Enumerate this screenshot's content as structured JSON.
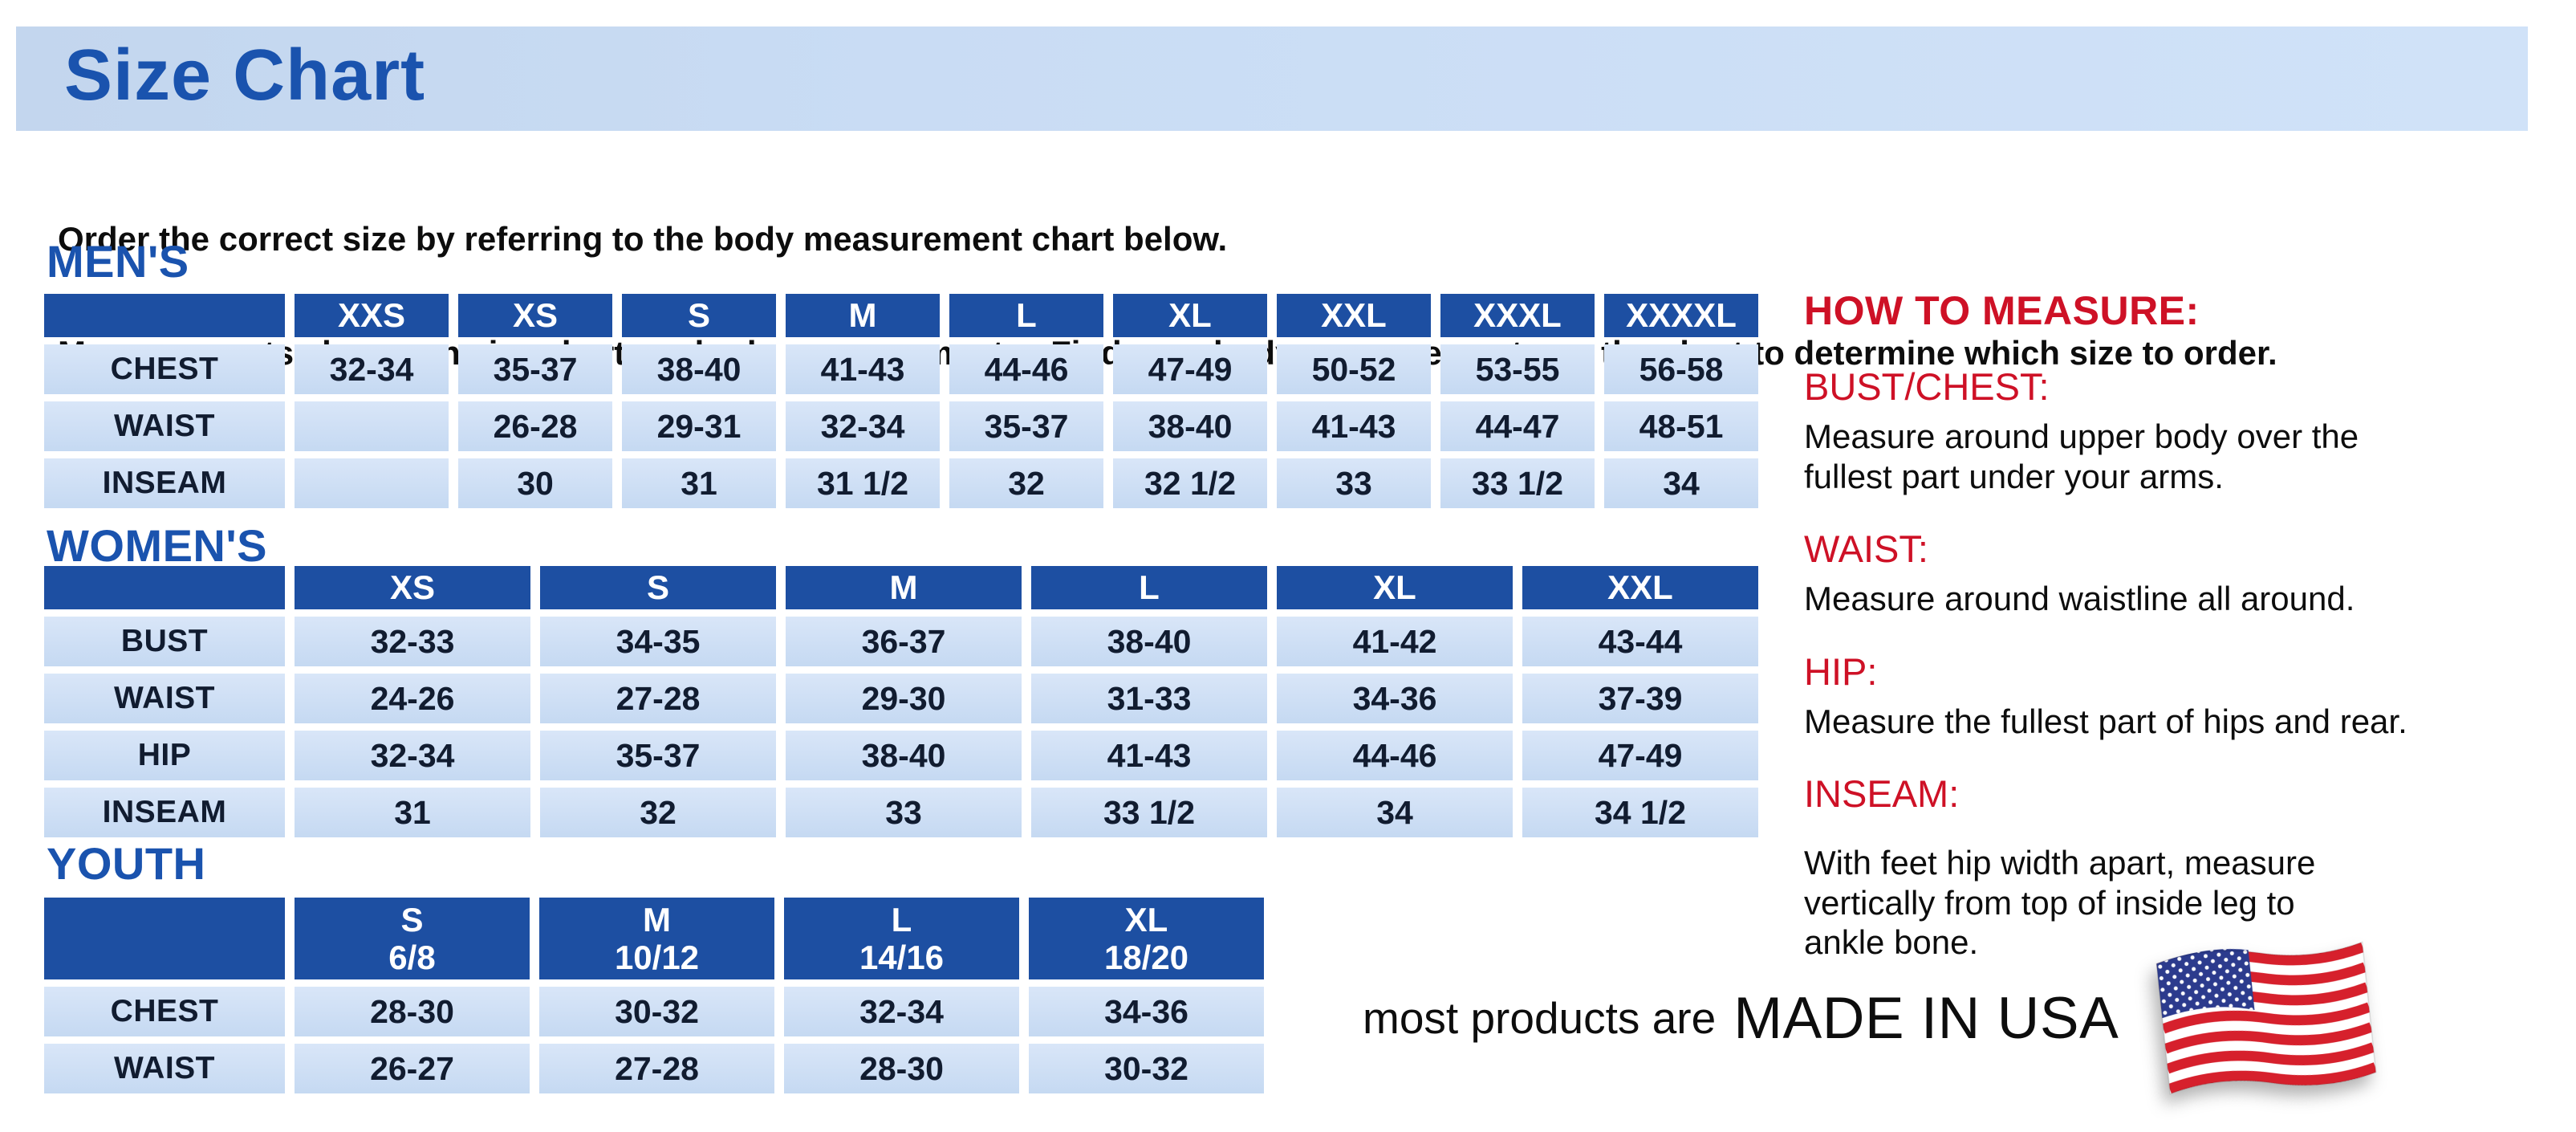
{
  "page": {
    "title": "Size Chart",
    "intro_line1": "Order the correct size by referring to the body measurement chart below.",
    "intro_line2": "Measurements shown on size chart are body measurements.  Find your body measurements on the chart to determine which size to order."
  },
  "tables": {
    "mens": {
      "heading": "MEN'S",
      "columns": [
        "XXS",
        "XS",
        "S",
        "M",
        "L",
        "XL",
        "XXL",
        "XXXL",
        "XXXXL"
      ],
      "rows": [
        {
          "label": "CHEST",
          "values": [
            "32-34",
            "35-37",
            "38-40",
            "41-43",
            "44-46",
            "47-49",
            "50-52",
            "53-55",
            "56-58"
          ]
        },
        {
          "label": "WAIST",
          "values": [
            "",
            "26-28",
            "29-31",
            "32-34",
            "35-37",
            "38-40",
            "41-43",
            "44-47",
            "48-51"
          ]
        },
        {
          "label": "INSEAM",
          "values": [
            "",
            "30",
            "31",
            "31 1/2",
            "32",
            "32 1/2",
            "33",
            "33 1/2",
            "34"
          ]
        }
      ]
    },
    "womens": {
      "heading": "WOMEN'S",
      "columns": [
        "XS",
        "S",
        "M",
        "L",
        "XL",
        "XXL"
      ],
      "rows": [
        {
          "label": "BUST",
          "values": [
            "32-33",
            "34-35",
            "36-37",
            "38-40",
            "41-42",
            "43-44"
          ]
        },
        {
          "label": "WAIST",
          "values": [
            "24-26",
            "27-28",
            "29-30",
            "31-33",
            "34-36",
            "37-39"
          ]
        },
        {
          "label": "HIP",
          "values": [
            "32-34",
            "35-37",
            "38-40",
            "41-43",
            "44-46",
            "47-49"
          ]
        },
        {
          "label": "INSEAM",
          "values": [
            "31",
            "32",
            "33",
            "33 1/2",
            "34",
            "34 1/2"
          ]
        }
      ]
    },
    "youth": {
      "heading": "YOUTH",
      "columns": [
        {
          "size": "S",
          "range": "6/8"
        },
        {
          "size": "M",
          "range": "10/12"
        },
        {
          "size": "L",
          "range": "14/16"
        },
        {
          "size": "XL",
          "range": "18/20"
        }
      ],
      "rows": [
        {
          "label": "CHEST",
          "values": [
            "28-30",
            "30-32",
            "32-34",
            "34-36"
          ]
        },
        {
          "label": "WAIST",
          "values": [
            "26-27",
            "27-28",
            "28-30",
            "30-32"
          ]
        }
      ]
    }
  },
  "how_to_measure": {
    "heading": "HOW TO MEASURE:",
    "sections": [
      {
        "label": "BUST/CHEST:",
        "text": "Measure around upper body over the\nfullest part under your arms."
      },
      {
        "label": "WAIST:",
        "text": "Measure around waistline all around."
      },
      {
        "label": "HIP:",
        "text": "Measure the fullest part of hips and rear."
      },
      {
        "label": "INSEAM:",
        "text": "With feet hip width apart, measure\nvertically from top of inside leg to\nankle bone."
      }
    ]
  },
  "footer": {
    "made_in_prefix": "most products are",
    "made_in_text": "MADE IN USA",
    "flag_icon": "usa-flag-icon"
  },
  "colors": {
    "title_blue": "#1a53ae",
    "header_blue": "#1d4fa2",
    "cell_top": "#d9e6f8",
    "cell_bottom": "#c5d9f2",
    "banner_left": "#c3d6ee",
    "banner_right": "#d0e2f8",
    "red": "#ce1126",
    "text_dark": "#111c30"
  }
}
